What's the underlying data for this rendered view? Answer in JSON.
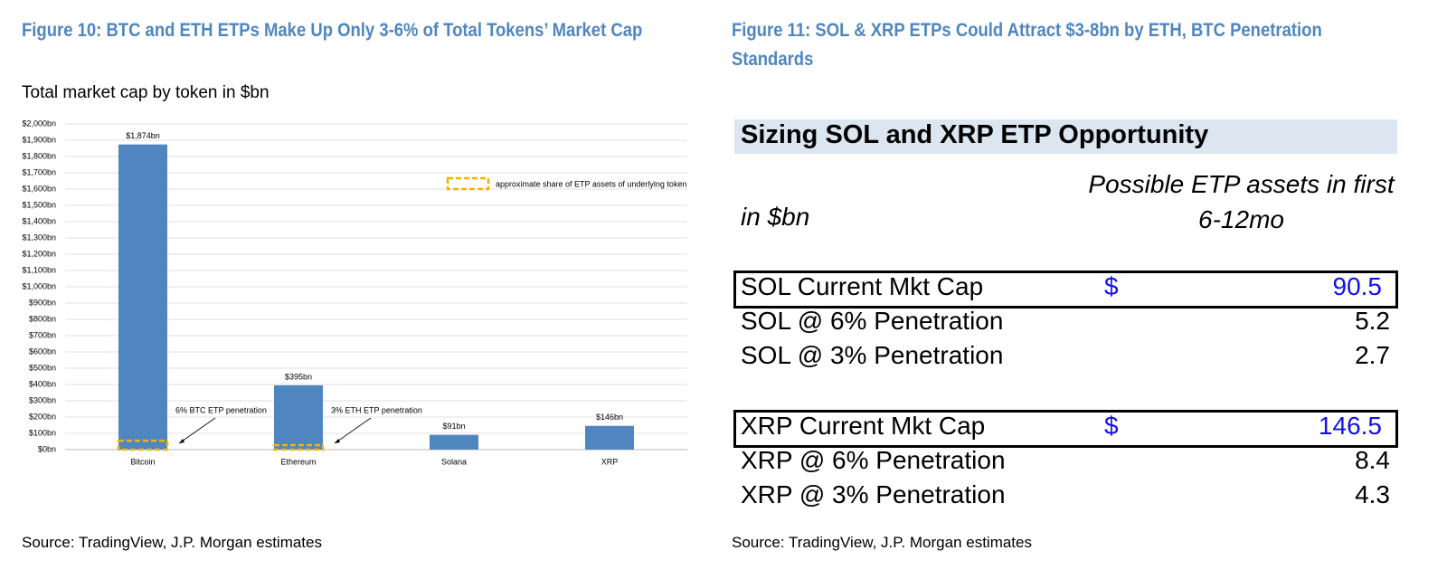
{
  "chart_data": {
    "type": "bar",
    "title": "Figure 10: BTC and ETH ETPs Make Up Only 3-6% of Total Tokens’ Market Cap",
    "subtitle": "Total market cap by token in $bn",
    "categories": [
      "Bitcoin",
      "Ethereum",
      "Solana",
      "XRP"
    ],
    "values": [
      1874,
      395,
      91,
      146
    ],
    "value_labels": [
      "$1,874bn",
      "$395bn",
      "$91bn",
      "$146bn"
    ],
    "color": "#4f86c0",
    "overlay": {
      "name": "approximate share of ETP assets of underlying token",
      "color": "#f5b400",
      "values": [
        55,
        28,
        null,
        null
      ]
    },
    "annotations": [
      "6% BTC ETP penetration",
      "3% ETH ETP penetration"
    ],
    "ylim": [
      0,
      2000
    ],
    "yticks": [
      {
        "value": 0,
        "label": "$0bn"
      },
      {
        "value": 100,
        "label": "$100bn"
      },
      {
        "value": 200,
        "label": "$200bn"
      },
      {
        "value": 300,
        "label": "$300bn"
      },
      {
        "value": 400,
        "label": "$400bn"
      },
      {
        "value": 500,
        "label": "$500bn"
      },
      {
        "value": 600,
        "label": "$600bn"
      },
      {
        "value": 700,
        "label": "$700bn"
      },
      {
        "value": 800,
        "label": "$800bn"
      },
      {
        "value": 900,
        "label": "$900bn"
      },
      {
        "value": 1000,
        "label": "$1,000bn"
      },
      {
        "value": 1100,
        "label": "$1,100bn"
      },
      {
        "value": 1200,
        "label": "$1,200bn"
      },
      {
        "value": 1300,
        "label": "$1,300bn"
      },
      {
        "value": 1400,
        "label": "$1,400bn"
      },
      {
        "value": 1500,
        "label": "$1,500bn"
      },
      {
        "value": 1600,
        "label": "$1,600bn"
      },
      {
        "value": 1700,
        "label": "$1,700bn"
      },
      {
        "value": 1800,
        "label": "$1,800bn"
      },
      {
        "value": 1900,
        "label": "$1,900bn"
      },
      {
        "value": 2000,
        "label": "$2,000bn"
      }
    ],
    "grid": true,
    "source": "Source: TradingView, J.P. Morgan estimates"
  },
  "figure11": {
    "title": "Figure 11: SOL & XRP ETPs Could Attract $3-8bn by ETH, BTC Penetration Standards",
    "table": {
      "heading": "Sizing SOL and XRP ETP Opportunity",
      "unit_label": "in $bn",
      "column_label": "Possible ETP assets in first 6-12mo",
      "rows": [
        {
          "label": "SOL Current Mkt Cap",
          "unit": "$",
          "value": 90.5
        },
        {
          "label": "SOL @ 6% Penetration",
          "value": 5.2
        },
        {
          "label": "SOL @ 3% Penetration",
          "value": 2.7
        },
        {
          "label": "XRP Current Mkt Cap",
          "unit": "$",
          "value": 146.5
        },
        {
          "label": "XRP @ 6% Penetration",
          "value": 8.4
        },
        {
          "label": "XRP @ 3% Penetration",
          "value": 4.3
        }
      ]
    },
    "source": "Source: TradingView, J.P. Morgan estimates"
  }
}
